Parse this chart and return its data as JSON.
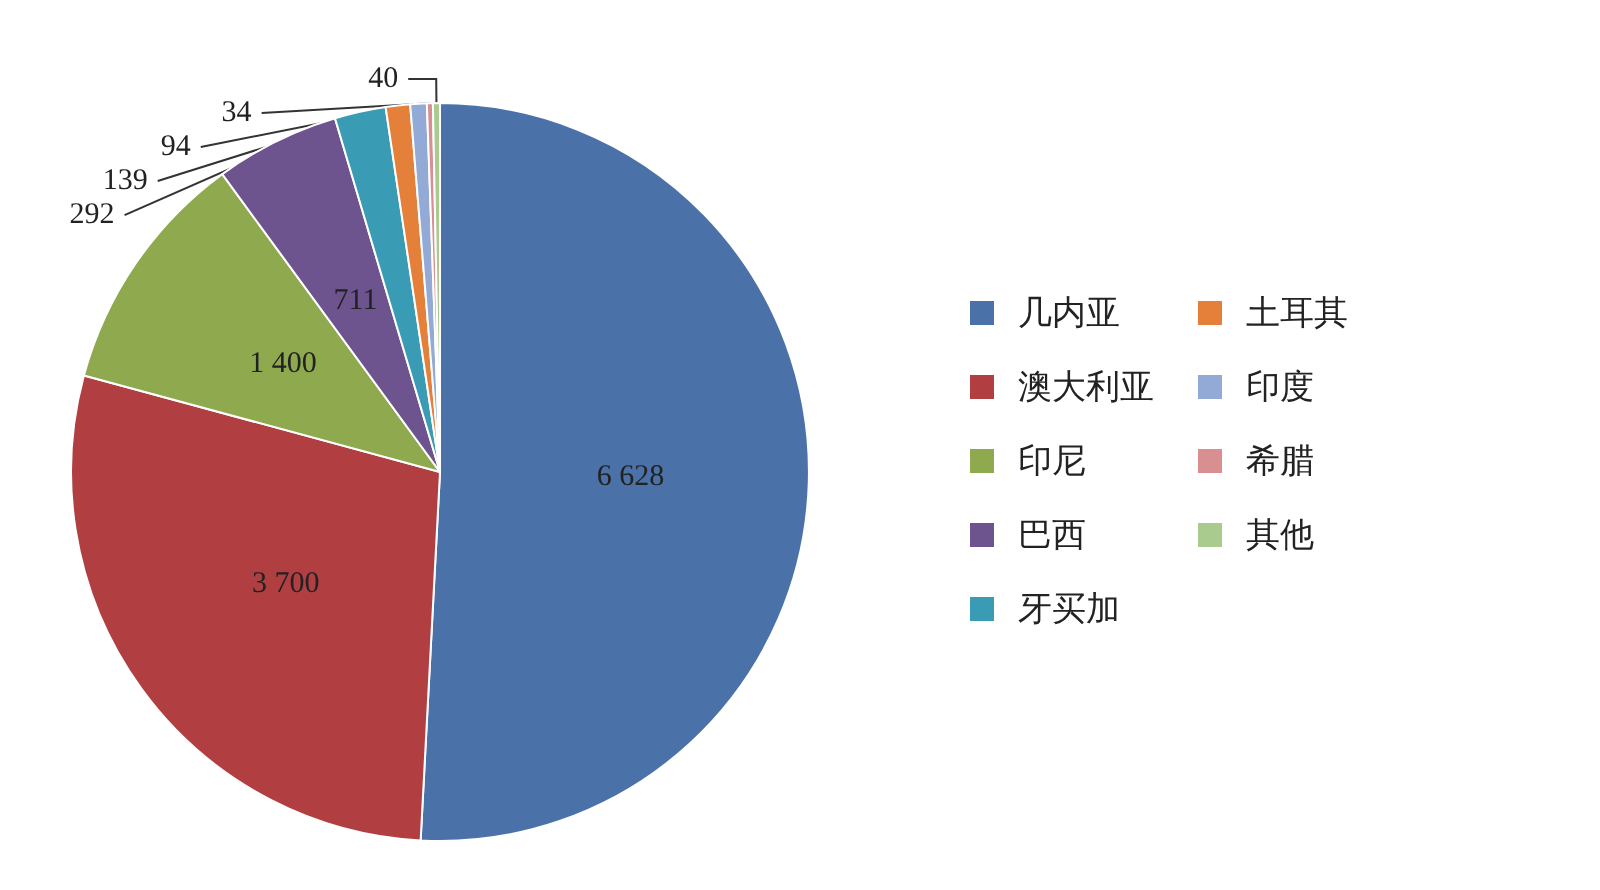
{
  "chart_data": {
    "type": "pie",
    "categories": [
      "几内亚",
      "澳大利亚",
      "印尼",
      "巴西",
      "牙买加",
      "土耳其",
      "印度",
      "希腊",
      "其他"
    ],
    "values": [
      6628,
      3700,
      1400,
      711,
      292,
      139,
      94,
      34,
      40
    ],
    "value_labels": [
      "6 628",
      "3 700",
      "1 400",
      "711",
      "292",
      "139",
      "94",
      "34",
      "40"
    ],
    "colors": [
      "#4a72a8",
      "#b13f42",
      "#8faa4e",
      "#6e548f",
      "#3a9bb4",
      "#e5803a",
      "#93a9d6",
      "#d98e92",
      "#a9cb8d"
    ],
    "legend": "right"
  }
}
